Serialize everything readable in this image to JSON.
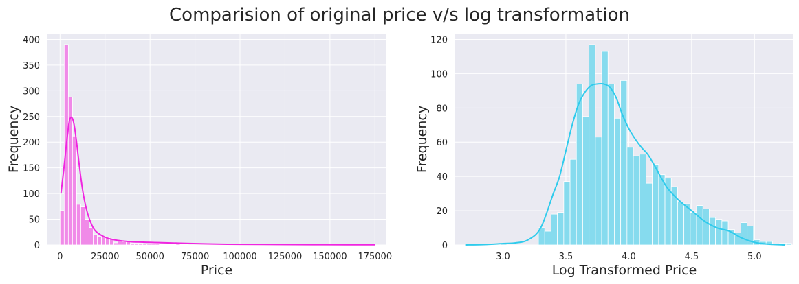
{
  "figure": {
    "title": "Comparision of original price v/s log transformation"
  },
  "chart_data": [
    {
      "type": "histogram",
      "xlabel": "Price",
      "ylabel": "Frequency",
      "xlim": [
        -7000,
        181000
      ],
      "ylim": [
        0,
        410
      ],
      "x_ticks": [
        0,
        25000,
        50000,
        75000,
        100000,
        125000,
        150000,
        175000
      ],
      "x_tick_labels": [
        "0",
        "25000",
        "50000",
        "75000",
        "100000",
        "125000",
        "150000",
        "175000"
      ],
      "y_ticks": [
        0,
        50,
        100,
        150,
        200,
        250,
        300,
        350,
        400
      ],
      "y_tick_labels": [
        "0",
        "50",
        "100",
        "150",
        "200",
        "250",
        "300",
        "350",
        "400"
      ],
      "grid": true,
      "legend": "none",
      "colors": {
        "bar": "#f08ae8",
        "bar_edge": "#ffffff",
        "kde": "#f025e0",
        "panel": "#eaeaf2",
        "grid": "#ffffff"
      },
      "bins": {
        "start": 0,
        "width": 2300,
        "counts": [
          67,
          390,
          288,
          212,
          79,
          74,
          49,
          34,
          20,
          16,
          16,
          14,
          12,
          4,
          8,
          6,
          7,
          3,
          3,
          3,
          2,
          2,
          3,
          3,
          1,
          1,
          1,
          1,
          4,
          1,
          1,
          0,
          0,
          0,
          0,
          0,
          0,
          0,
          0,
          0,
          0,
          0,
          0,
          0,
          0,
          0,
          0,
          0,
          0,
          0,
          0,
          0,
          0,
          0,
          0,
          0,
          0,
          0,
          0,
          0,
          0,
          0,
          0,
          0,
          0,
          0,
          0,
          0,
          0,
          0,
          0,
          0,
          0,
          0,
          0,
          1
        ]
      },
      "kde": {
        "x": [
          500,
          2000,
          3500,
          5000,
          6000,
          7000,
          8000,
          9000,
          10000,
          11500,
          13000,
          15000,
          17500,
          20000,
          25000,
          30000,
          35000,
          40000,
          45000,
          50000,
          55000,
          60000,
          70000,
          80000,
          90000,
          100000,
          120000,
          140000,
          160000,
          175000
        ],
        "y": [
          100,
          145,
          195,
          238,
          248,
          245,
          230,
          205,
          175,
          132,
          97,
          65,
          40,
          26,
          15,
          10,
          7.5,
          6,
          5.5,
          5,
          4.5,
          4,
          3,
          2.2,
          1.5,
          1.2,
          0.8,
          0.5,
          0.4,
          0.3
        ]
      }
    },
    {
      "type": "histogram",
      "xlabel": "Log Transformed Price",
      "ylabel": "Frequency",
      "xlim": [
        2.62,
        5.31
      ],
      "ylim": [
        0,
        123
      ],
      "x_ticks": [
        3.0,
        3.5,
        4.0,
        4.5,
        5.0
      ],
      "x_tick_labels": [
        "3.0",
        "3.5",
        "4.0",
        "4.5",
        "5.0"
      ],
      "y_ticks": [
        0,
        20,
        40,
        60,
        80,
        100,
        120
      ],
      "y_tick_labels": [
        "0",
        "20",
        "40",
        "60",
        "80",
        "100",
        "120"
      ],
      "grid": true,
      "legend": "none",
      "colors": {
        "bar": "#86dbee",
        "bar_edge": "#ffffff",
        "kde": "#2fcbec",
        "panel": "#eaeaf2",
        "grid": "#ffffff"
      },
      "bins": {
        "start": 2.98,
        "width": 0.0503,
        "counts": [
          1,
          0,
          0,
          0,
          0,
          0,
          10,
          8,
          18,
          19,
          37,
          50,
          94,
          75,
          117,
          63,
          113,
          94,
          74,
          96,
          57,
          52,
          53,
          36,
          47,
          41,
          39,
          34,
          25,
          24,
          19,
          23,
          21,
          16,
          15,
          14,
          9,
          7,
          13,
          11,
          3,
          2,
          2,
          0,
          0,
          1
        ],
        "extra_bars": [
          {
            "x": 5.2,
            "count": 1
          }
        ]
      },
      "kde": {
        "x": [
          2.7,
          2.85,
          3.0,
          3.1,
          3.2,
          3.3,
          3.4,
          3.45,
          3.5,
          3.55,
          3.6,
          3.65,
          3.7,
          3.75,
          3.8,
          3.85,
          3.9,
          3.95,
          4.0,
          4.05,
          4.1,
          4.15,
          4.2,
          4.3,
          4.4,
          4.5,
          4.6,
          4.7,
          4.8,
          4.9,
          5.0,
          5.1,
          5.24
        ],
        "y": [
          0,
          0.2,
          0.8,
          1.2,
          3,
          10,
          30,
          40,
          55,
          70,
          82,
          89,
          93,
          94,
          94,
          92,
          86,
          76,
          68,
          62,
          57,
          53,
          47,
          34,
          26,
          20,
          14,
          10,
          8,
          4,
          1.5,
          0.5,
          0
        ]
      }
    }
  ]
}
